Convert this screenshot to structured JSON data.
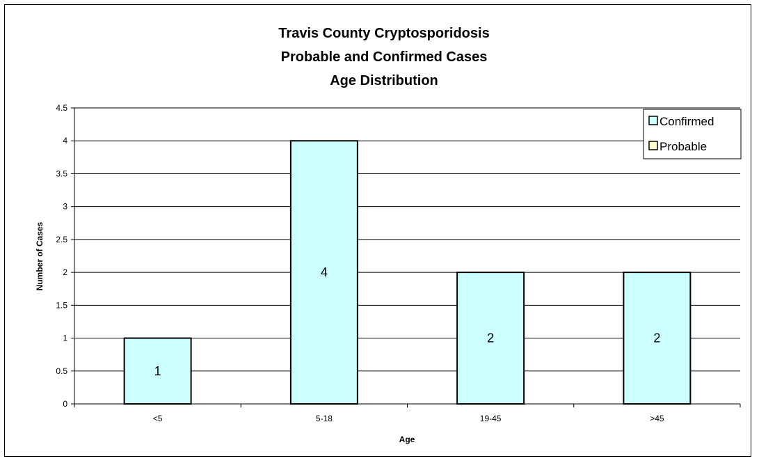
{
  "chart_data": {
    "type": "bar",
    "title": [
      "Travis County Cryptosporidosis",
      "Probable and Confirmed Cases",
      "Age Distribution"
    ],
    "xlabel": "Age",
    "ylabel": "Number of Cases",
    "categories": [
      "<5",
      "5-18",
      "19-45",
      ">45"
    ],
    "series": [
      {
        "name": "Confirmed",
        "values": [
          1,
          4,
          2,
          2
        ],
        "color": "#ccffff",
        "data_labels": [
          "1",
          "4",
          "2",
          "2"
        ]
      },
      {
        "name": "Probable",
        "values": [
          0,
          0,
          0,
          0
        ],
        "color": "#ffffcc"
      }
    ],
    "ylim": [
      0,
      4.5
    ],
    "yticks": [
      0,
      0.5,
      1,
      1.5,
      2,
      2.5,
      3,
      3.5,
      4,
      4.5
    ],
    "ytick_labels": [
      "0",
      "0.5",
      "1",
      "1.5",
      "2",
      "2.5",
      "3",
      "3.5",
      "4",
      "4.5"
    ],
    "grid": true,
    "legend_position": "top-right"
  }
}
